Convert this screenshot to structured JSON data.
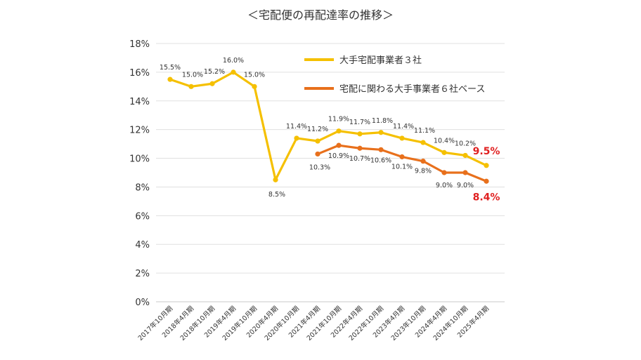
{
  "chart_data": {
    "type": "line",
    "title": "＜宅配便の再配達率の推移＞",
    "categories": [
      "2017年10月期",
      "2018年4月期",
      "2018年10月期",
      "2019年4月期",
      "2019年10月期",
      "2020年4月期",
      "2020年10月期",
      "2021年4月期",
      "2021年10月期",
      "2022年4月期",
      "2022年10月期",
      "2023年4月期",
      "2023年10月期",
      "2024年4月期",
      "2024年10月期",
      "2025年4月期"
    ],
    "ylim": [
      0,
      18
    ],
    "yticks": [
      "0%",
      "2%",
      "4%",
      "6%",
      "8%",
      "10%",
      "12%",
      "14%",
      "16%",
      "18%"
    ],
    "grid": true,
    "legend_position": "top-right",
    "series": [
      {
        "name": "大手宅配事業者３社",
        "color": "#f5c000",
        "values": [
          15.5,
          15.0,
          15.2,
          16.0,
          15.0,
          8.5,
          11.4,
          11.2,
          11.9,
          11.7,
          11.8,
          11.4,
          11.1,
          10.4,
          10.2,
          9.5
        ],
        "labels": [
          "15.5%",
          "15.0%",
          "15.2%",
          "16.0%",
          "15.0%",
          "8.5%",
          "11.4%",
          "11.2%",
          "11.9%",
          "11.7%",
          "11.8%",
          "11.4%",
          "11.1%",
          "10.4%",
          "10.2%",
          "9.5%"
        ]
      },
      {
        "name": "宅配に関わる大手事業者６社ベース",
        "color": "#e8701c",
        "values": [
          null,
          null,
          null,
          null,
          null,
          null,
          null,
          10.3,
          10.9,
          10.7,
          10.6,
          10.1,
          9.8,
          9.0,
          9.0,
          8.4
        ],
        "labels": [
          "",
          "",
          "",
          "",
          "",
          "",
          "",
          "10.3%",
          "10.9%",
          "10.7%",
          "10.6%",
          "10.1%",
          "9.8%",
          "9.0%",
          "9.0%",
          "8.4%"
        ]
      }
    ]
  }
}
